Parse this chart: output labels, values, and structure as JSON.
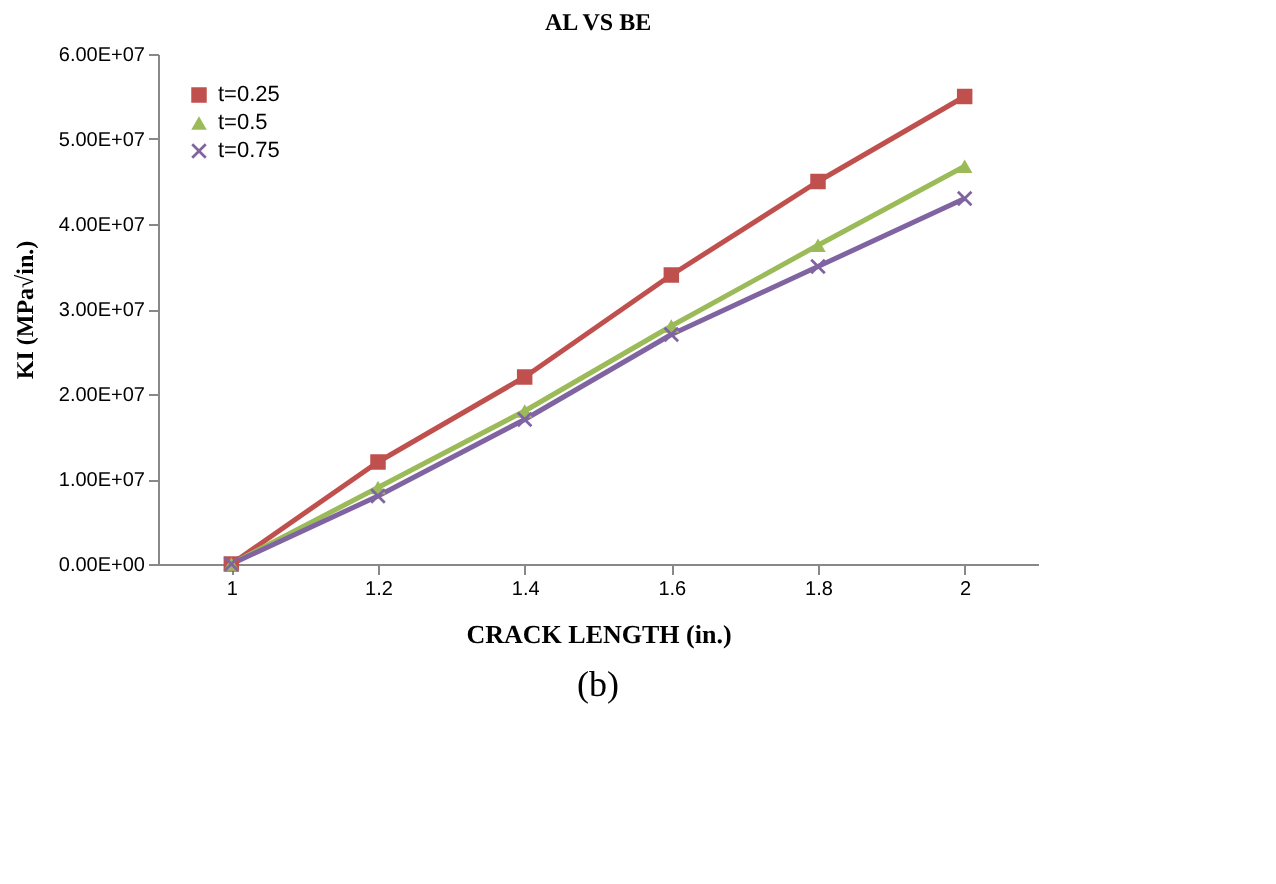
{
  "chart_data": {
    "type": "line",
    "title": "AL VS BE",
    "xlabel": "CRACK LENGTH (in.)",
    "ylabel": "KI (MPa√in.)",
    "categories": [
      "1",
      "1.2",
      "1.4",
      "1.6",
      "1.8",
      "2"
    ],
    "series": [
      {
        "name": "t=0.25",
        "color": "#c0504d",
        "marker": "square",
        "values": [
          0,
          12000000,
          22000000,
          34000000,
          45000000,
          55000000
        ]
      },
      {
        "name": "t=0.5",
        "color": "#9bbb59",
        "marker": "triangle",
        "values": [
          0,
          9000000,
          18000000,
          28000000,
          37500000,
          46800000
        ]
      },
      {
        "name": "t=0.75",
        "color": "#8064a2",
        "marker": "cross",
        "values": [
          0,
          8000000,
          17000000,
          27000000,
          35000000,
          43000000
        ]
      }
    ],
    "ylim": [
      0,
      60000000
    ],
    "yticks": [
      {
        "value": 0,
        "label": "0.00E+00"
      },
      {
        "value": 10000000,
        "label": "1.00E+07"
      },
      {
        "value": 20000000,
        "label": "2.00E+07"
      },
      {
        "value": 30000000,
        "label": "3.00E+07"
      },
      {
        "value": 40000000,
        "label": "4.00E+07"
      },
      {
        "value": 50000000,
        "label": "5.00E+07"
      },
      {
        "value": 60000000,
        "label": "6.00E+07"
      }
    ],
    "grid": false,
    "legend": "top left",
    "line_style": "solid",
    "annotations": [
      "(b)"
    ]
  }
}
